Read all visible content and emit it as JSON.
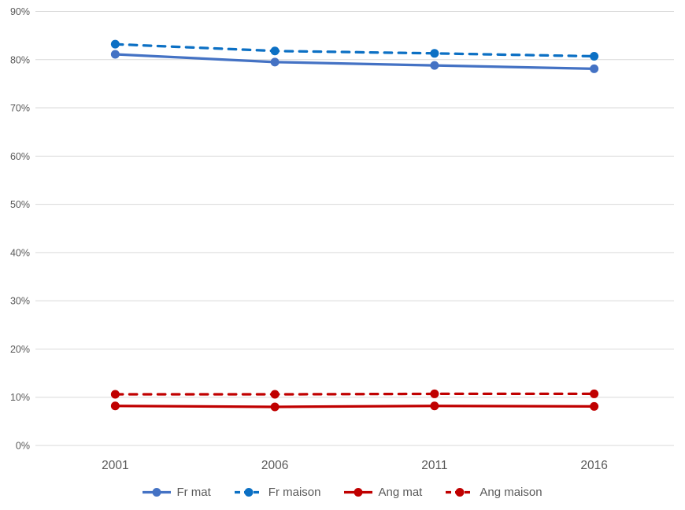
{
  "chart_data": {
    "type": "line",
    "categories": [
      "2001",
      "2006",
      "2011",
      "2016"
    ],
    "series": [
      {
        "name": "Fr mat",
        "values": [
          81.1,
          79.5,
          78.8,
          78.1
        ],
        "color": "#4472C4",
        "line_style": "solid"
      },
      {
        "name": "Fr maison",
        "values": [
          83.2,
          81.8,
          81.3,
          80.7
        ],
        "color": "#0C70C4",
        "line_style": "dashed"
      },
      {
        "name": "Ang mat",
        "values": [
          8.2,
          8.0,
          8.2,
          8.1
        ],
        "color": "#C00000",
        "line_style": "solid"
      },
      {
        "name": "Ang maison",
        "values": [
          10.6,
          10.6,
          10.7,
          10.7
        ],
        "color": "#C00000",
        "line_style": "dashed"
      }
    ],
    "ylim": [
      0,
      90
    ],
    "ytick_step": 10,
    "ytick_labels": [
      "0%",
      "10%",
      "20%",
      "30%",
      "40%",
      "50%",
      "60%",
      "70%",
      "80%",
      "90%"
    ],
    "grid": "horizontal-only",
    "legend_position": "bottom",
    "marker": "circle"
  },
  "style": {
    "background": "#FFFFFF",
    "gridline_color": "#D9D9D9",
    "tick_label_color": "#595959",
    "legend_text_color": "#595959"
  }
}
